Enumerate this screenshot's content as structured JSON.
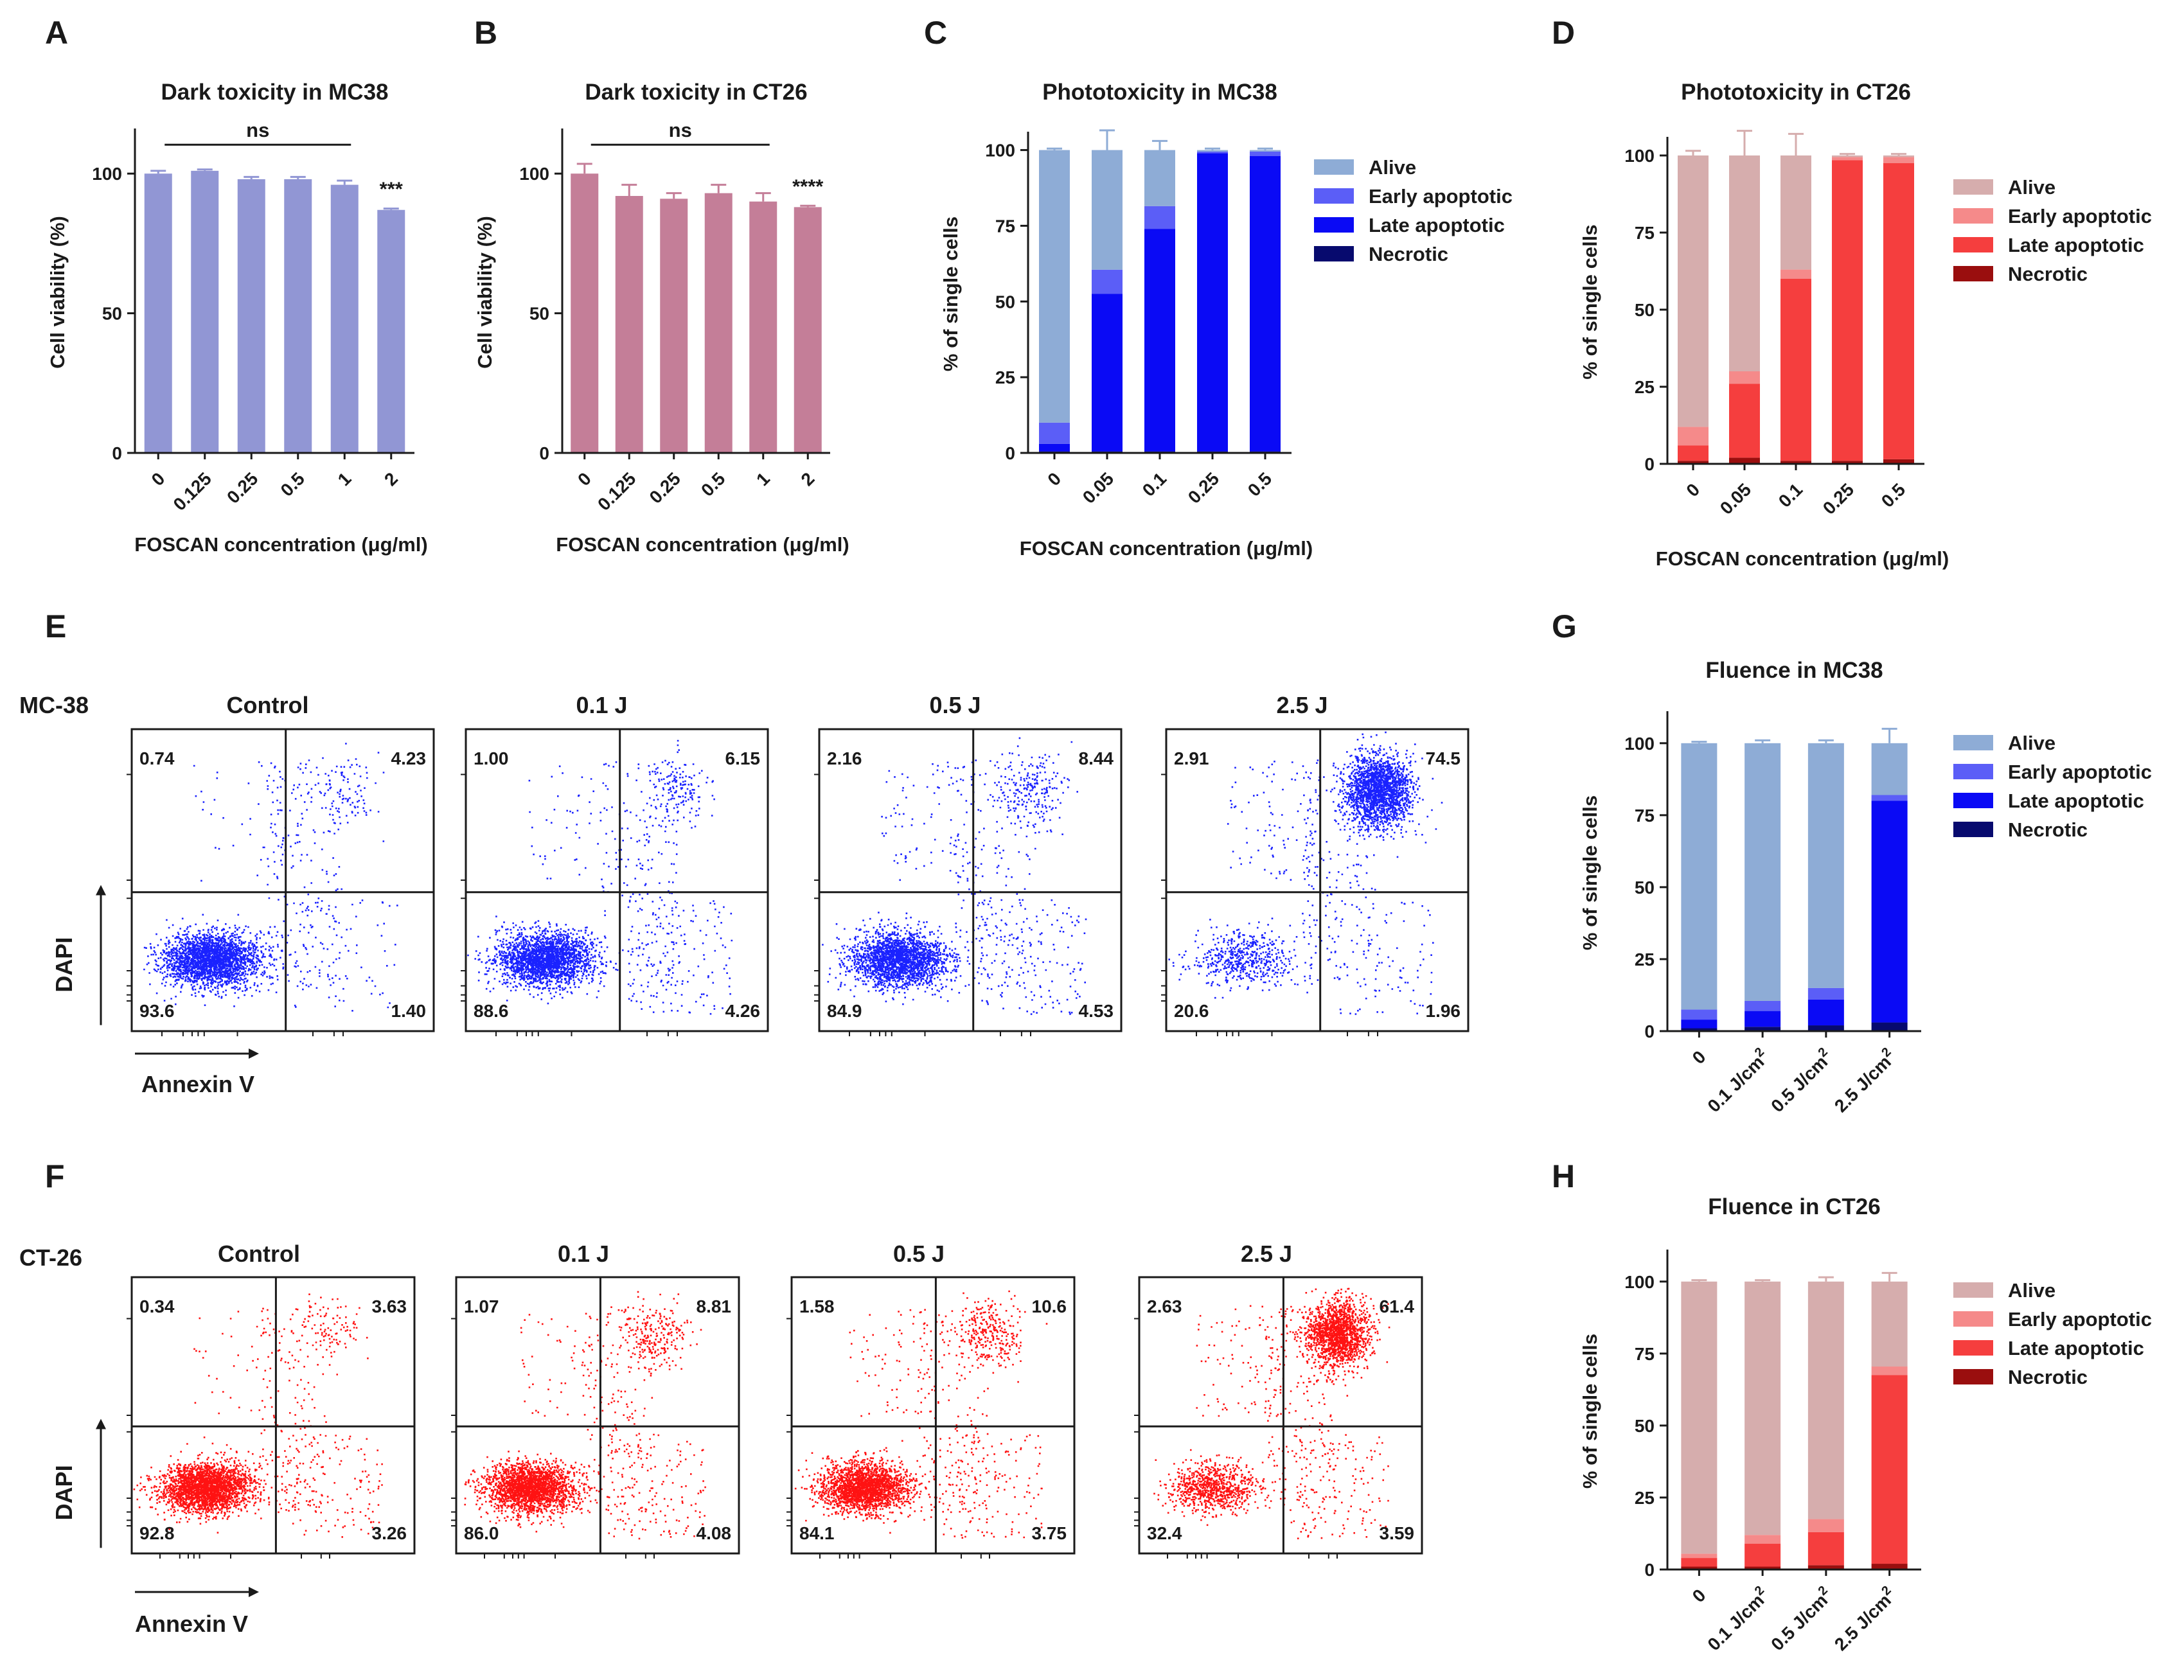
{
  "panel_letters": [
    "A",
    "B",
    "C",
    "D",
    "E",
    "F",
    "G",
    "H"
  ],
  "colors": {
    "blue": {
      "alive": "#8eacd6",
      "early": "#5b5ef7",
      "late": "#0a0af5",
      "necrotic": "#070a6e",
      "viability": "#9196d4",
      "dots": "#1a22ff"
    },
    "red": {
      "alive": "#d6adad",
      "early": "#f58a8a",
      "late": "#f53e3e",
      "necrotic": "#9a0e0e",
      "viability": "#c47e98",
      "dots": "#ff1212"
    }
  },
  "chart_data": [
    {
      "panel": "A",
      "type": "bar",
      "title": "Dark toxicity in MC38",
      "xlabel": "FOSCAN concentration (μg/ml)",
      "ylabel": "Cell viability (%)",
      "categories": [
        "0",
        "0.125",
        "0.25",
        "0.5",
        "1",
        "2"
      ],
      "values": [
        100,
        101,
        98,
        98,
        96,
        87
      ],
      "errors": [
        1,
        0.5,
        0.8,
        0.8,
        1.5,
        0.5
      ],
      "ylim": [
        0,
        115
      ],
      "yticks": [
        0,
        50,
        100
      ],
      "annotations": {
        "ns": "ns",
        "star": "***"
      }
    },
    {
      "panel": "B",
      "type": "bar",
      "title": "Dark toxicity in CT26",
      "xlabel": "FOSCAN concentration (μg/ml)",
      "ylabel": "Cell viability (%)",
      "categories": [
        "0",
        "0.125",
        "0.25",
        "0.5",
        "1",
        "2"
      ],
      "values": [
        100,
        92,
        91,
        93,
        90,
        88
      ],
      "errors": [
        3.5,
        4,
        2,
        3,
        3,
        0.5
      ],
      "ylim": [
        0,
        115
      ],
      "yticks": [
        0,
        50,
        100
      ],
      "annotations": {
        "ns": "ns",
        "star": "****"
      }
    },
    {
      "panel": "C",
      "type": "bar",
      "stacked": true,
      "title": "Phototoxicity in MC38",
      "xlabel": "FOSCAN concentration (μg/ml)",
      "ylabel": "% of single cells",
      "categories": [
        "0",
        "0.05",
        "0.1",
        "0.25",
        "0.5"
      ],
      "series": [
        {
          "name": "Necrotic",
          "values": [
            0.5,
            0.5,
            0.5,
            0.5,
            0.5
          ]
        },
        {
          "name": "Late apoptotic",
          "values": [
            2.5,
            52,
            73.5,
            98.5,
            97.5
          ]
        },
        {
          "name": "Early apoptotic",
          "values": [
            7,
            8,
            7.5,
            0.5,
            1.5
          ]
        },
        {
          "name": "Alive",
          "values": [
            90,
            39.5,
            18.5,
            0.5,
            0.5
          ]
        }
      ],
      "errors": [
        0.5,
        6.5,
        3,
        0.5,
        0.5
      ],
      "ylim": [
        0,
        105
      ],
      "yticks": [
        0,
        25,
        50,
        75,
        100
      ],
      "legend": [
        "Alive",
        "Early apoptotic",
        "Late apoptotic",
        "Necrotic"
      ]
    },
    {
      "panel": "D",
      "type": "bar",
      "stacked": true,
      "title": "Phototoxicity in CT26",
      "xlabel": "FOSCAN concentration (μg/ml)",
      "ylabel": "% of single cells",
      "categories": [
        "0",
        "0.05",
        "0.1",
        "0.25",
        "0.5"
      ],
      "series": [
        {
          "name": "Necrotic",
          "values": [
            1,
            2,
            1,
            1,
            1.5
          ]
        },
        {
          "name": "Late apoptotic",
          "values": [
            5,
            24,
            59,
            97.5,
            96
          ]
        },
        {
          "name": "Early apoptotic",
          "values": [
            6,
            4,
            3,
            1,
            2
          ]
        },
        {
          "name": "Alive",
          "values": [
            88,
            70,
            37,
            0.5,
            0.5
          ]
        }
      ],
      "errors": [
        1.5,
        8,
        7,
        0.5,
        0.5
      ],
      "ylim": [
        0,
        105
      ],
      "yticks": [
        0,
        25,
        50,
        75,
        100
      ],
      "legend": [
        "Alive",
        "Early apoptotic",
        "Late apoptotic",
        "Necrotic"
      ]
    },
    {
      "panel": "G",
      "type": "bar",
      "stacked": true,
      "title": "Fluence in MC38",
      "xlabel": "",
      "ylabel": "% of single cells",
      "categories": [
        "0",
        "0.1 J/cm²",
        "0.5 J/cm²",
        "2.5 J/cm²"
      ],
      "series": [
        {
          "name": "Necrotic",
          "values": [
            1,
            1.5,
            2,
            3
          ]
        },
        {
          "name": "Late apoptotic",
          "values": [
            3,
            5.5,
            9,
            77
          ]
        },
        {
          "name": "Early apoptotic",
          "values": [
            3.5,
            3.5,
            4,
            2
          ]
        },
        {
          "name": "Alive",
          "values": [
            92.5,
            89.5,
            85,
            18
          ]
        }
      ],
      "errors": [
        0.5,
        1,
        1,
        5
      ],
      "ylim": [
        0,
        110
      ],
      "yticks": [
        0,
        25,
        50,
        75,
        100
      ],
      "legend": [
        "Alive",
        "Early apoptotic",
        "Late apoptotic",
        "Necrotic"
      ]
    },
    {
      "panel": "H",
      "type": "bar",
      "stacked": true,
      "title": "Fluence in CT26",
      "xlabel": "",
      "ylabel": "% of single cells",
      "categories": [
        "0",
        "0.1 J/cm²",
        "0.5 J/cm²",
        "2.5 J/cm²"
      ],
      "series": [
        {
          "name": "Necrotic",
          "values": [
            1,
            1,
            1.5,
            2
          ]
        },
        {
          "name": "Late apoptotic",
          "values": [
            3,
            8,
            11.5,
            65.5
          ]
        },
        {
          "name": "Early apoptotic",
          "values": [
            1.5,
            3,
            4.5,
            3
          ]
        },
        {
          "name": "Alive",
          "values": [
            94.5,
            88,
            82.5,
            29.5
          ]
        }
      ],
      "errors": [
        0.5,
        0.5,
        1.5,
        3
      ],
      "ylim": [
        0,
        110
      ],
      "yticks": [
        0,
        25,
        50,
        75,
        100
      ],
      "legend": [
        "Alive",
        "Early apoptotic",
        "Late apoptotic",
        "Necrotic"
      ]
    }
  ],
  "flow": [
    {
      "panel": "E",
      "cell_line": "MC-38",
      "theme": "blue",
      "ylabel": "DAPI",
      "xlabel": "Annexin V",
      "plots": [
        {
          "title": "Control",
          "ul": "0.74",
          "ur": "4.23",
          "ll": "93.6",
          "lr": "1.40"
        },
        {
          "title": "0.1 J",
          "ul": "1.00",
          "ur": "6.15",
          "ll": "88.6",
          "lr": "4.26"
        },
        {
          "title": "0.5 J",
          "ul": "2.16",
          "ur": "8.44",
          "ll": "84.9",
          "lr": "4.53"
        },
        {
          "title": "2.5 J",
          "ul": "2.91",
          "ur": "74.5",
          "ll": "20.6",
          "lr": "1.96"
        }
      ]
    },
    {
      "panel": "F",
      "cell_line": "CT-26",
      "theme": "red",
      "ylabel": "DAPI",
      "xlabel": "Annexin V",
      "plots": [
        {
          "title": "Control",
          "ul": "0.34",
          "ur": "3.63",
          "ll": "92.8",
          "lr": "3.26"
        },
        {
          "title": "0.1 J",
          "ul": "1.07",
          "ur": "8.81",
          "ll": "86.0",
          "lr": "4.08"
        },
        {
          "title": "0.5 J",
          "ul": "1.58",
          "ur": "10.6",
          "ll": "84.1",
          "lr": "3.75"
        },
        {
          "title": "2.5 J",
          "ul": "2.63",
          "ur": "61.4",
          "ll": "32.4",
          "lr": "3.59"
        }
      ]
    }
  ]
}
